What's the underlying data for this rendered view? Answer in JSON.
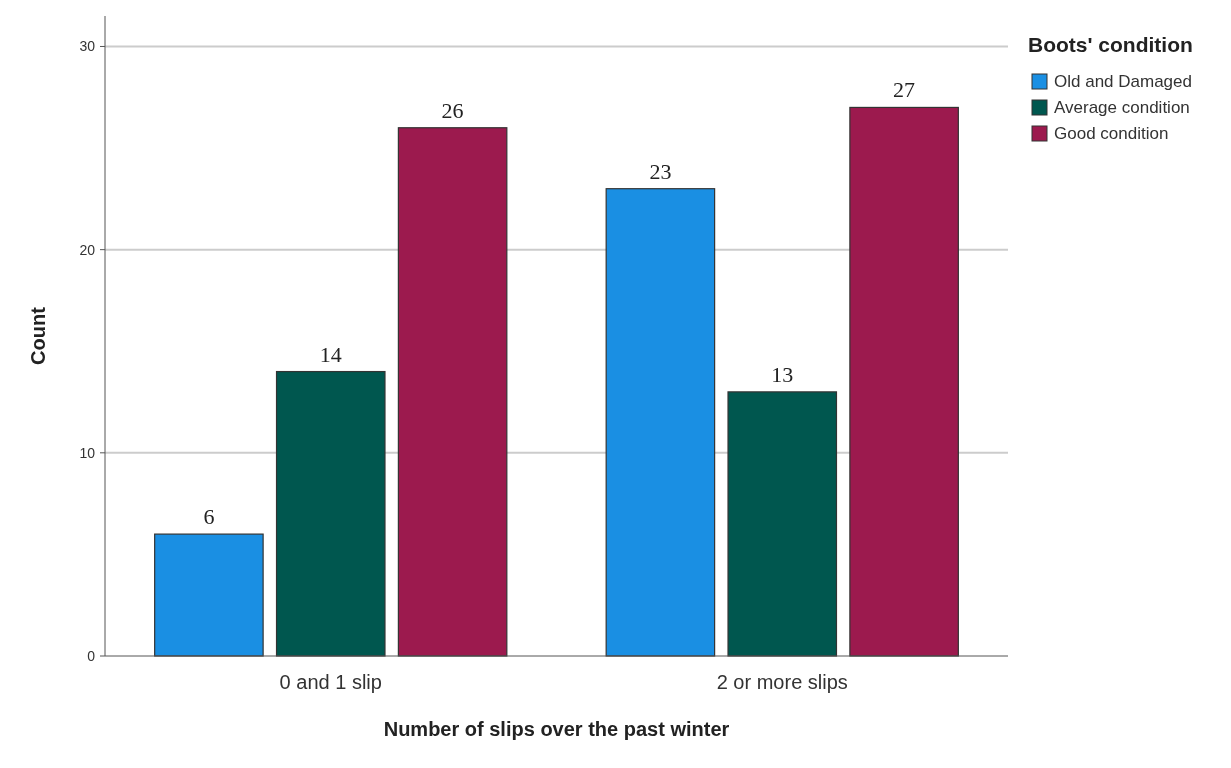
{
  "chart_data": {
    "type": "bar",
    "xlabel": "Number of slips over the past winter",
    "ylabel": "Count",
    "legend_title": "Boots' condition",
    "categories": [
      "0 and 1 slip",
      "2 or more slips"
    ],
    "series": [
      {
        "name": "Old and Damaged",
        "color": "#1a8fe3",
        "values": [
          6,
          23
        ]
      },
      {
        "name": "Average condition",
        "color": "#00574f",
        "values": [
          14,
          13
        ]
      },
      {
        "name": "Good condition",
        "color": "#9c1a4e",
        "values": [
          26,
          27
        ]
      }
    ],
    "ylim": [
      0,
      31.5
    ],
    "yticks": [
      0,
      10,
      20,
      30
    ],
    "grid": "y",
    "legend": "top right",
    "data_labels": true
  }
}
